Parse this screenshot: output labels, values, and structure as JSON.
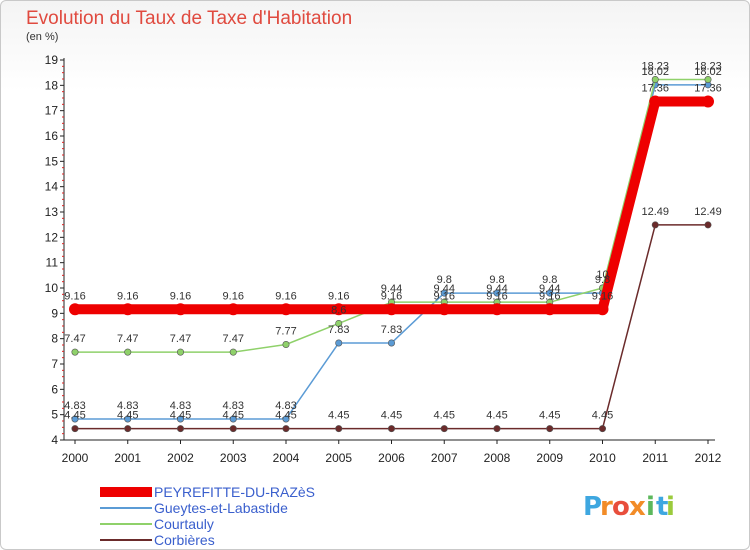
{
  "chart_data": {
    "type": "line",
    "title": "Evolution du Taux de Taxe d'Habitation",
    "ylabel": "(en %)",
    "xlabel": "",
    "x": [
      "2000",
      "2001",
      "2002",
      "2003",
      "2004",
      "2005",
      "2006",
      "2007",
      "2008",
      "2009",
      "2010",
      "2011",
      "2012"
    ],
    "ylim": [
      4,
      19
    ],
    "yticks": [
      "4",
      "5",
      "6",
      "7",
      "8",
      "9",
      "10",
      "11",
      "12",
      "13",
      "14",
      "15",
      "16",
      "17",
      "18",
      "19"
    ],
    "series": [
      {
        "name": "PEYREFITTE-DU-RAZèS",
        "color": "#ee0000",
        "values": [
          9.16,
          9.16,
          9.16,
          9.16,
          9.16,
          9.16,
          9.16,
          9.16,
          9.16,
          9.16,
          9.16,
          17.36,
          17.36
        ],
        "labels": [
          "9.16",
          "9.16",
          "9.16",
          "9.16",
          "9.16",
          "9.16",
          "9.16",
          "9.16",
          "9.16",
          "9.16",
          "9.16",
          "17.36",
          "17.36"
        ]
      },
      {
        "name": "Gueytes-et-Labastide",
        "color": "#5b9bd5",
        "values": [
          4.83,
          4.83,
          4.83,
          4.83,
          4.83,
          7.83,
          7.83,
          9.8,
          9.8,
          9.8,
          9.8,
          18.02,
          18.02
        ],
        "labels": [
          "4.83",
          "4.83",
          "4.83",
          "4.83",
          "4.83",
          "7.83",
          "7.83",
          "9.8",
          "9.8",
          "9.8",
          "9.8",
          "18.02",
          "18.02"
        ]
      },
      {
        "name": "Courtauly",
        "color": "#8fd16a",
        "values": [
          7.47,
          7.47,
          7.47,
          7.47,
          7.77,
          8.6,
          9.44,
          9.44,
          9.44,
          9.44,
          10,
          18.23,
          18.23
        ],
        "labels": [
          "7.47",
          "7.47",
          "7.47",
          "7.47",
          "7.77",
          "8.6",
          "9.44",
          "9.44",
          "9.44",
          "9.44",
          "10",
          "18.23",
          "18.23"
        ]
      },
      {
        "name": "Corbières",
        "color": "#6b2b2b",
        "values": [
          4.45,
          4.45,
          4.45,
          4.45,
          4.45,
          4.45,
          4.45,
          4.45,
          4.45,
          4.45,
          4.45,
          12.49,
          12.49
        ],
        "labels": [
          "4.45",
          "4.45",
          "4.45",
          "4.45",
          "4.45",
          "4.45",
          "4.45",
          "4.45",
          "4.45",
          "4.45",
          "4.45",
          "12.49",
          "12.49"
        ]
      }
    ],
    "legend_position": "bottom-left",
    "grid": false
  },
  "logo": {
    "letters": [
      "P",
      "r",
      "o",
      "x",
      "i",
      "t",
      "i"
    ],
    "colors": [
      "#3ea7e0",
      "#f28c28",
      "#e84e3c",
      "#f28c28",
      "#5cb85c",
      "#3ea7e0",
      "#9bcb3c"
    ]
  }
}
